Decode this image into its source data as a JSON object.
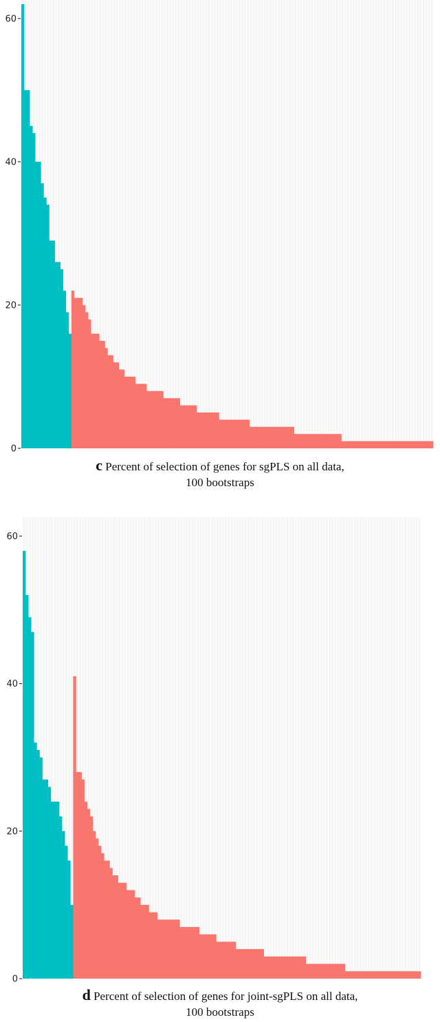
{
  "chart_data": [
    {
      "type": "bar",
      "panel_letter": "c",
      "caption_line1": "Percent of selection of genes for sgPLS on all data,",
      "caption_line2": "100 bootstraps",
      "ylim": [
        0,
        62
      ],
      "yticks": [
        0,
        20,
        40,
        60
      ],
      "grid": true,
      "colors": {
        "teal": "#00BFC4",
        "salmon": "#F8766D"
      },
      "series": [
        {
          "color_key": "teal",
          "values": [
            62,
            50,
            50,
            45,
            44,
            40,
            40,
            37,
            35,
            34,
            29,
            29,
            26,
            26,
            25,
            22,
            19,
            16
          ]
        },
        {
          "color_key": "salmon",
          "values": [
            22,
            21,
            21,
            21,
            20,
            19,
            18,
            16,
            16,
            16,
            15,
            15,
            14,
            13,
            13,
            12,
            12,
            11,
            11,
            10,
            10,
            10,
            10,
            9,
            9,
            9,
            9,
            8,
            8,
            8,
            8,
            8,
            8,
            7,
            7,
            7,
            7,
            7,
            7,
            6,
            6,
            6,
            6,
            6,
            6,
            5,
            5,
            5,
            5,
            5,
            5,
            5,
            5,
            4,
            4,
            4,
            4,
            4,
            4,
            4,
            4,
            4,
            4,
            4,
            3,
            3,
            3,
            3,
            3,
            3,
            3,
            3,
            3,
            3,
            3,
            3,
            3,
            3,
            3,
            3,
            2,
            2,
            2,
            2,
            2,
            2,
            2,
            2,
            2,
            2,
            2,
            2,
            2,
            2,
            2,
            2,
            2,
            1,
            1,
            1,
            1,
            1,
            1,
            1,
            1,
            1,
            1,
            1,
            1,
            1,
            1,
            1,
            1,
            1,
            1,
            1,
            1,
            1,
            1,
            1,
            1,
            1,
            1,
            1,
            1,
            1,
            1,
            1,
            1,
            1
          ]
        }
      ]
    },
    {
      "type": "bar",
      "panel_letter": "d",
      "caption_line1": "Percent of selection of genes for joint-sgPLS on all data,",
      "caption_line2": "100 bootstraps",
      "ylim": [
        0,
        62
      ],
      "yticks": [
        0,
        20,
        40,
        60
      ],
      "grid": true,
      "colors": {
        "teal": "#00BFC4",
        "salmon": "#F8766D"
      },
      "series": [
        {
          "color_key": "teal",
          "values": [
            58,
            52,
            49,
            47,
            32,
            31,
            30,
            27,
            27,
            26,
            24,
            24,
            24,
            22,
            20,
            18,
            16,
            10
          ]
        },
        {
          "color_key": "salmon",
          "values": [
            41,
            28,
            28,
            27,
            24,
            23,
            22,
            20,
            19,
            18,
            17,
            16,
            16,
            15,
            14,
            14,
            13,
            13,
            13,
            12,
            12,
            12,
            11,
            11,
            10,
            10,
            10,
            9,
            9,
            9,
            8,
            8,
            8,
            8,
            8,
            8,
            8,
            8,
            7,
            7,
            7,
            7,
            7,
            7,
            7,
            6,
            6,
            6,
            6,
            6,
            6,
            5,
            5,
            5,
            5,
            5,
            5,
            5,
            4,
            4,
            4,
            4,
            4,
            4,
            4,
            4,
            4,
            4,
            3,
            3,
            3,
            3,
            3,
            3,
            3,
            3,
            3,
            3,
            3,
            3,
            3,
            3,
            3,
            2,
            2,
            2,
            2,
            2,
            2,
            2,
            2,
            2,
            2,
            2,
            2,
            2,
            2,
            1,
            1,
            1,
            1,
            1,
            1,
            1,
            1,
            1,
            1,
            1,
            1,
            1,
            1,
            1,
            1,
            1,
            1,
            1,
            1,
            1,
            1,
            1,
            1,
            1,
            1,
            1
          ]
        }
      ]
    }
  ]
}
